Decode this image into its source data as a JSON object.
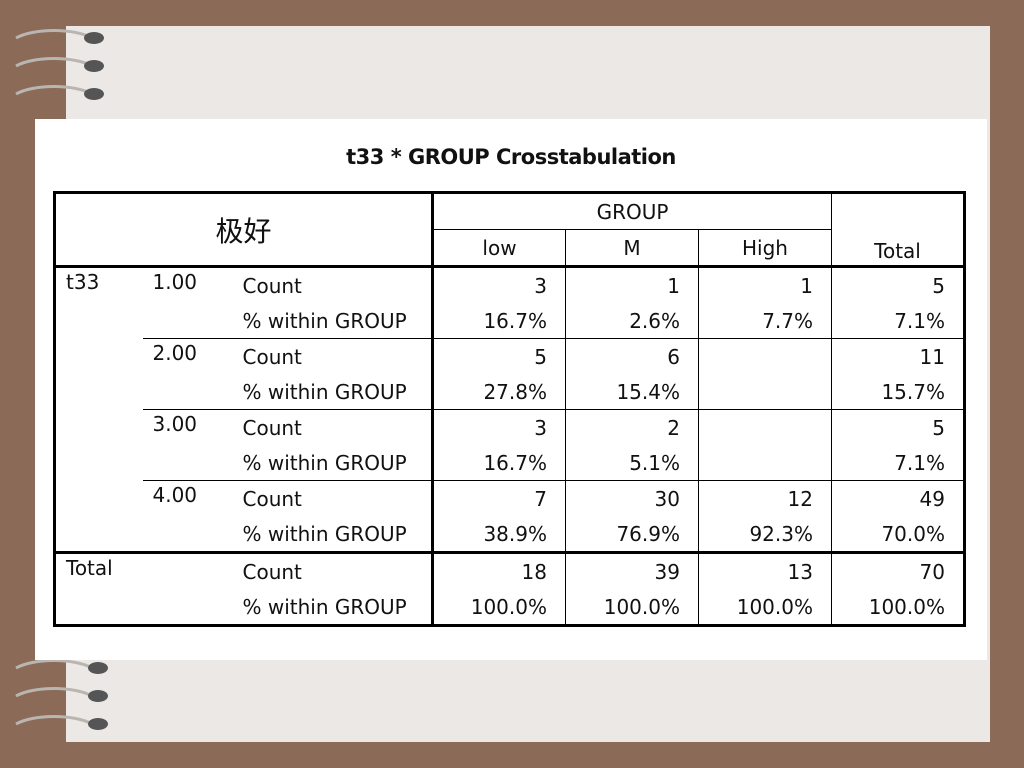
{
  "title": "t33 * GROUP Crosstabulation",
  "header": {
    "corner_label": "极好",
    "group_label": "GROUP",
    "groups": [
      "low",
      "M",
      "High"
    ],
    "total_label": "Total"
  },
  "row_variable": "t33",
  "rows": [
    {
      "value": "1.00",
      "count_label": "Count",
      "pct_label": "% within GROUP",
      "counts": [
        "3",
        "1",
        "1",
        "5"
      ],
      "pcts": [
        "16.7%",
        "2.6%",
        "7.7%",
        "7.1%"
      ]
    },
    {
      "value": "2.00",
      "count_label": "Count",
      "pct_label": "% within GROUP",
      "counts": [
        "5",
        "6",
        "",
        "11"
      ],
      "pcts": [
        "27.8%",
        "15.4%",
        "",
        "15.7%"
      ]
    },
    {
      "value": "3.00",
      "count_label": "Count",
      "pct_label": "% within GROUP",
      "counts": [
        "3",
        "2",
        "",
        "5"
      ],
      "pcts": [
        "16.7%",
        "5.1%",
        "",
        "7.1%"
      ]
    },
    {
      "value": "4.00",
      "count_label": "Count",
      "pct_label": "% within GROUP",
      "counts": [
        "7",
        "30",
        "12",
        "49"
      ],
      "pcts": [
        "38.9%",
        "76.9%",
        "92.3%",
        "70.0%"
      ]
    }
  ],
  "total": {
    "label": "Total",
    "count_label": "Count",
    "pct_label": "% within GROUP",
    "counts": [
      "18",
      "39",
      "13",
      "70"
    ],
    "pcts": [
      "100.0%",
      "100.0%",
      "100.0%",
      "100.0%"
    ]
  },
  "colors": {
    "frame": "#8b6a58",
    "paper": "#ece8e6",
    "sheet": "#ffffff"
  }
}
